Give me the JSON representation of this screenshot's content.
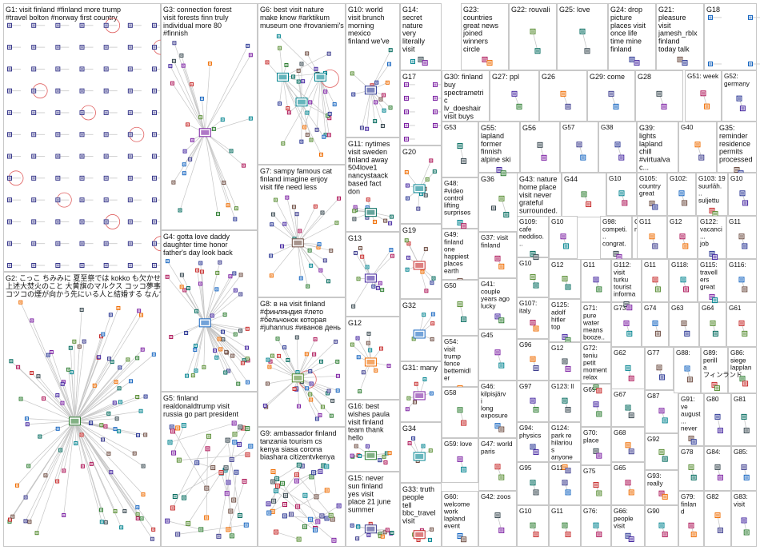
{
  "canvas": {
    "background": "#ffffff",
    "border_color": "#c8c8c8",
    "edge_color": "#c6c6c6",
    "loop_color": "#e06060"
  },
  "groups": [
    {
      "id": "G1",
      "label": "G1: visit finland #finland more trump #travel bolton #norway first country"
    },
    {
      "id": "G2",
      "label": "G2: こっこ ちみみに 夏至祭では kokko も欠かせない行事のひとつだよ 上述大焚火のこと 大黄旗のマルクス コッコ夢事宮の名字と同じだね コツコの煙が向かう先にいる人と結婚する なんて言い伝えもあるよ"
    },
    {
      "id": "G3",
      "label": "G3: connection forest visit forests finn truly individual more 80 #finnish"
    },
    {
      "id": "G4",
      "label": "G4: gotta love daddy daughter time honor father's day look back"
    },
    {
      "id": "G5",
      "label": "G5: finland realdonaldtrump visit russia go part president putin citizen recommend"
    },
    {
      "id": "G6",
      "label": "G6: best visit nature make know #arktikum museum one #rovaniemi's known"
    },
    {
      "id": "G7",
      "label": "G7: sampy famous cat finland imagine enjoy visit fife need less"
    },
    {
      "id": "G8",
      "label": "G8: в на visit finland #финляндия #лето #бельчонок которая #juhannus #иванов день"
    },
    {
      "id": "G9",
      "label": "G9: ambassador finland tanzania tourism cs kenya siasa corona biashara citizentvkenya"
    },
    {
      "id": "G10",
      "label": "G10: world visit brunch morning mexico finland we've recipes"
    },
    {
      "id": "G11",
      "label": "G11: nytimes visit sweden finland away 504love1 nancystaack based fact don"
    },
    {
      "id": "G12",
      "label": "G12"
    },
    {
      "id": "G13",
      "label": "G13"
    },
    {
      "id": "G14",
      "label": "G14: secret nature very literally visit finland explains others go therapy"
    },
    {
      "id": "G15",
      "label": "G15: never sun finland yes visit place 21 june summer solstice"
    },
    {
      "id": "G16",
      "label": "G16: best wishes paula visit finland team thank hello"
    },
    {
      "id": "G17",
      "label": "G17"
    },
    {
      "id": "G18",
      "label": "G18"
    },
    {
      "id": "G19",
      "label": "G19"
    },
    {
      "id": "G20",
      "label": "G20"
    },
    {
      "id": "G21",
      "label": "G21: pleasure visit jamesh_rblx finland today talk development upcoming war resolution"
    },
    {
      "id": "G22",
      "label": "G22: rouvali"
    },
    {
      "id": "G23",
      "label": "G23: countries great news joined winners circle europe finland hungary ireland"
    },
    {
      "id": "G24",
      "label": "G24: drop picture places visit once life time mine finland turkey"
    },
    {
      "id": "G25",
      "label": "G25: love"
    },
    {
      "id": "G26",
      "label": "G26"
    },
    {
      "id": "G27",
      "label": "G27: ppl"
    },
    {
      "id": "G28",
      "label": "G28"
    },
    {
      "id": "G29",
      "label": "G29: come"
    },
    {
      "id": "G30",
      "label": "G30: finland buy spectrametric lv_doeshair visit buys greenland..."
    },
    {
      "id": "G31",
      "label": "G31: many"
    },
    {
      "id": "G32",
      "label": "G32"
    },
    {
      "id": "G33",
      "label": "G33: truth people tell bbc_travel visit finland finnish"
    },
    {
      "id": "G34",
      "label": "G34"
    },
    {
      "id": "G35",
      "label": "G35: reminder residence permits processed before..."
    },
    {
      "id": "G36",
      "label": "G36"
    },
    {
      "id": "G37",
      "label": "G37: visit finland time"
    },
    {
      "id": "G38",
      "label": "G38"
    },
    {
      "id": "G39",
      "label": "G39: lights lapland chill #virtualvac... series over created 360 degree..."
    },
    {
      "id": "G40",
      "label": "G40"
    },
    {
      "id": "G41",
      "label": "G41: couple years ago lucky enough visit..."
    },
    {
      "id": "G42",
      "label": "G42: zoos"
    },
    {
      "id": "G43",
      "label": "G43: nature home place visit never grateful surrounded..."
    },
    {
      "id": "G44",
      "label": "G44"
    },
    {
      "id": "G45",
      "label": "G45"
    },
    {
      "id": "G46",
      "label": "G46: kilpisjärvi long exposure lake lapland..."
    },
    {
      "id": "G47",
      "label": "G47: world paris"
    },
    {
      "id": "G48",
      "label": "G48: #video control lifting surprises simplicity..."
    },
    {
      "id": "G49",
      "label": "G49: finland one happiest places earth famous..."
    },
    {
      "id": "G50",
      "label": "G50"
    },
    {
      "id": "G51",
      "label": "G51: week"
    },
    {
      "id": "G52",
      "label": "G52: germany visit"
    },
    {
      "id": "G53",
      "label": "G53"
    },
    {
      "id": "G54",
      "label": "G54: visit trump fence bettemidler covid 19 over think..."
    },
    {
      "id": "G55",
      "label": "G55: lapland former finnish alpine ski racer..."
    },
    {
      "id": "G56",
      "label": "G56"
    },
    {
      "id": "G57",
      "label": "G57"
    },
    {
      "id": "G58",
      "label": "G58"
    },
    {
      "id": "G59",
      "label": "G59: love"
    },
    {
      "id": "G60",
      "label": "G60: welcome work lapland event finnish..."
    },
    {
      "id": "G61",
      "label": "G61"
    },
    {
      "id": "G62",
      "label": "G62"
    },
    {
      "id": "G63",
      "label": "G63"
    },
    {
      "id": "G64",
      "label": "G64"
    },
    {
      "id": "G65",
      "label": "G65"
    },
    {
      "id": "G66",
      "label": "G66: people visit"
    },
    {
      "id": "G67",
      "label": "G67"
    },
    {
      "id": "G68",
      "label": "G68"
    },
    {
      "id": "G69",
      "label": "G69"
    },
    {
      "id": "G70",
      "label": "G70: place"
    },
    {
      "id": "G71",
      "label": "G71: pure water means booze..."
    },
    {
      "id": "G72",
      "label": "G72: teniu petit moment relax gaudiu..."
    },
    {
      "id": "G73",
      "label": "G73: visit"
    },
    {
      "id": "G74",
      "label": "G74"
    },
    {
      "id": "G75",
      "label": "G75"
    },
    {
      "id": "G76",
      "label": "G76: finland"
    },
    {
      "id": "G77",
      "label": "G77"
    },
    {
      "id": "G78",
      "label": "G78"
    },
    {
      "id": "G79",
      "label": "G79: finland visit"
    },
    {
      "id": "G80",
      "label": "G80"
    },
    {
      "id": "G81",
      "label": "G81"
    },
    {
      "id": "G82",
      "label": "G82"
    },
    {
      "id": "G83",
      "label": "G83: visit"
    },
    {
      "id": "G84",
      "label": "G84: perha..."
    },
    {
      "id": "G85",
      "label": "G85: tea"
    },
    {
      "id": "G86",
      "label": "G86: siege lappland visit"
    },
    {
      "id": "G87",
      "label": "G87"
    },
    {
      "id": "G88",
      "label": "G88: thought"
    },
    {
      "id": "G89",
      "label": "G89: perilla フィンランドにまる前によく..."
    },
    {
      "id": "G90",
      "label": "G90"
    },
    {
      "id": "G91",
      "label": "G91: ve august... never bought cattle tv viewed..."
    },
    {
      "id": "G92",
      "label": "G92"
    },
    {
      "id": "G93",
      "label": "G93: really"
    },
    {
      "id": "G94",
      "label": "G94: physics"
    },
    {
      "id": "G95",
      "label": "G95"
    },
    {
      "id": "G96",
      "label": "G96"
    },
    {
      "id": "G97",
      "label": "G97"
    },
    {
      "id": "G98",
      "label": "G98: competi... congrat... jkmm architec..."
    },
    {
      "id": "G99",
      "label": "G99: meeting best"
    },
    {
      "id": "G100",
      "label": "G100"
    },
    {
      "id": "G101",
      "label": "G101"
    },
    {
      "id": "G102",
      "label": "G102: see"
    },
    {
      "id": "G103",
      "label": "G103: 19 suurläh... suljettu pe..."
    },
    {
      "id": "G104",
      "label": "G104"
    },
    {
      "id": "G105",
      "label": "G105: country great years"
    },
    {
      "id": "G106",
      "label": "G106"
    },
    {
      "id": "G107",
      "label": "G107: italy quaranti..."
    },
    {
      "id": "G108",
      "label": "G108"
    },
    {
      "id": "G109",
      "label": "G109: cafe neddiso... yukimaya visit..."
    },
    {
      "id": "G110",
      "label": "G110"
    },
    {
      "id": "G111",
      "label": "G111"
    },
    {
      "id": "G112",
      "label": "G112: visit turku tourist informat... office..."
    },
    {
      "id": "G113",
      "label": "G113"
    },
    {
      "id": "G114",
      "label": "G114"
    },
    {
      "id": "G115",
      "label": "G115: travellers great news welcom..."
    },
    {
      "id": "G116",
      "label": "G116: australia"
    },
    {
      "id": "G117",
      "label": "G117"
    },
    {
      "id": "G118",
      "label": "G118: finland"
    },
    {
      "id": "G119",
      "label": "G119"
    },
    {
      "id": "G120",
      "label": "G120"
    },
    {
      "id": "G121",
      "label": "G121"
    },
    {
      "id": "G122",
      "label": "G122: vacanci... job search many..."
    },
    {
      "id": "G123",
      "label": "G123: ll"
    },
    {
      "id": "G124",
      "label": "G124: park re hilarious anyone thought..."
    },
    {
      "id": "G125",
      "label": "G125: adolf hitler top secret..."
    },
    {
      "id": "G126",
      "label": "G126"
    }
  ]
}
